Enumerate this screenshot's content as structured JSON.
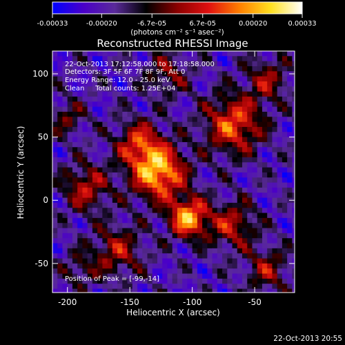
{
  "chart_data": {
    "type": "heatmap",
    "title": "Reconstructed RHESSI Image",
    "xlabel": "Heliocentric X (arcsec)",
    "ylabel": "Heliocentric Y (arcsec)",
    "xlim": [
      -212,
      -18
    ],
    "ylim": [
      -73,
      118
    ],
    "x_ticks": [
      -200,
      -150,
      -100,
      -50
    ],
    "x_tick_labels": [
      "-200",
      "-150",
      "-100",
      "-50"
    ],
    "y_ticks": [
      -50,
      0,
      50,
      100
    ],
    "y_tick_labels": [
      "-50",
      "0",
      "50",
      "100"
    ],
    "colorbar": {
      "range": [
        -0.00033,
        0.00033
      ],
      "ticks": [
        -0.00033,
        -0.0002,
        -6.7e-05,
        6.7e-05,
        0.0002,
        0.00033
      ],
      "tick_labels": [
        "-0.00033",
        "-0.00020",
        "-6.7e-05",
        "6.7e-05",
        "0.00020",
        "0.00033"
      ],
      "units_label": "(photons cm⁻² s⁻¹ asec⁻²)"
    },
    "colormap": [
      "#0000ff",
      "#4a00c8",
      "#5a2a9a",
      "#000000",
      "#8b0000",
      "#e01010",
      "#ff8000",
      "#ffe020",
      "#ffffff"
    ],
    "annotations": [
      "22-Oct-2013 17:12:58.000  to 17:18:58.000",
      "Detectors: 3F 5F 6F 7F 8F 9F, Att 0",
      "Energy Range: 12.0 - 25.0 keV",
      "Clean     Total counts: 1.25E+04"
    ],
    "peak_label": "Position of Peak = [-99,-14]",
    "sources": [
      {
        "x": -127,
        "y": 22,
        "sigma": 15,
        "amp": 1.0
      },
      {
        "x": -103,
        "y": -14,
        "sigma": 11,
        "amp": 0.95
      },
      {
        "x": -67,
        "y": 60,
        "sigma": 16,
        "amp": 0.75
      },
      {
        "x": -143,
        "y": 45,
        "sigma": 13,
        "amp": 0.6
      },
      {
        "x": -185,
        "y": 10,
        "sigma": 13,
        "amp": 0.55
      },
      {
        "x": -160,
        "y": -40,
        "sigma": 14,
        "amp": 0.5
      },
      {
        "x": -68,
        "y": -20,
        "sigma": 13,
        "amp": 0.55
      },
      {
        "x": -120,
        "y": 100,
        "sigma": 12,
        "amp": 0.4
      },
      {
        "x": -40,
        "y": 95,
        "sigma": 12,
        "amp": 0.45
      },
      {
        "x": -40,
        "y": -55,
        "sigma": 12,
        "amp": 0.45
      },
      {
        "x": -200,
        "y": 65,
        "sigma": 10,
        "amp": 0.35
      },
      {
        "x": -190,
        "y": -55,
        "sigma": 10,
        "amp": 0.3
      }
    ]
  },
  "footer_timestamp": "22-Oct-2013 20:55"
}
